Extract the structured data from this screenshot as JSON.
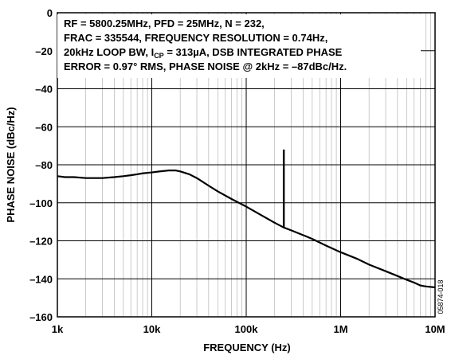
{
  "chart_data": {
    "type": "line",
    "xlabel": "FREQUENCY (Hz)",
    "ylabel": "PHASE NOISE (dBc/Hz)",
    "xscale": "log",
    "xlim": [
      1000,
      10000000
    ],
    "ylim": [
      -160,
      0
    ],
    "x_ticks": [
      {
        "value": 1000,
        "label": "1k"
      },
      {
        "value": 10000,
        "label": "10k"
      },
      {
        "value": 100000,
        "label": "100k"
      },
      {
        "value": 1000000,
        "label": "1M"
      },
      {
        "value": 10000000,
        "label": "10M"
      }
    ],
    "y_ticks": [
      {
        "value": 0,
        "label": "0"
      },
      {
        "value": -20,
        "label": "–20"
      },
      {
        "value": -40,
        "label": "–40"
      },
      {
        "value": -60,
        "label": "–60"
      },
      {
        "value": -80,
        "label": "–80"
      },
      {
        "value": -100,
        "label": "–100"
      },
      {
        "value": -120,
        "label": "–120"
      },
      {
        "value": -140,
        "label": "–140"
      },
      {
        "value": -160,
        "label": "–160"
      }
    ],
    "grid": true,
    "annotation": {
      "lines": [
        "RF = 5800.25MHz, PFD = 25MHz, N = 232,",
        "FRAC = 335544, FREQUENCY RESOLUTION = 0.74Hz,",
        "20kHz LOOP BW, I",
        "ERROR = 0.97° RMS, PHASE NOISE @ 2kHz = –87dBc/Hz."
      ],
      "line3_sub": "CP",
      "line3_rest": " = 313µA, DSB INTEGRATED PHASE"
    },
    "figure_id": "05874-018",
    "series": [
      {
        "points": [
          [
            1000,
            -86
          ],
          [
            1200,
            -86.5
          ],
          [
            1500,
            -86.5
          ],
          [
            2000,
            -87
          ],
          [
            2500,
            -87
          ],
          [
            3000,
            -87
          ],
          [
            4000,
            -86.5
          ],
          [
            5000,
            -86
          ],
          [
            6000,
            -85.5
          ],
          [
            7000,
            -85
          ],
          [
            8000,
            -84.5
          ],
          [
            10000,
            -84
          ],
          [
            12000,
            -83.5
          ],
          [
            15000,
            -83
          ],
          [
            18000,
            -83
          ],
          [
            20000,
            -83.5
          ],
          [
            25000,
            -85
          ],
          [
            30000,
            -87
          ],
          [
            40000,
            -91
          ],
          [
            50000,
            -94
          ],
          [
            70000,
            -98
          ],
          [
            100000,
            -102
          ],
          [
            150000,
            -107
          ],
          [
            200000,
            -110.5
          ],
          [
            250000,
            -113
          ],
          [
            300000,
            -114.5
          ],
          [
            400000,
            -117
          ],
          [
            500000,
            -119
          ],
          [
            700000,
            -122.5
          ],
          [
            1000000,
            -126
          ],
          [
            1500000,
            -129.5
          ],
          [
            2000000,
            -132.5
          ],
          [
            3000000,
            -136
          ],
          [
            4000000,
            -138.5
          ],
          [
            5000000,
            -140.5
          ],
          [
            6000000,
            -142
          ],
          [
            7000000,
            -143.5
          ],
          [
            8000000,
            -144
          ],
          [
            10000000,
            -144.5
          ]
        ]
      }
    ],
    "spur": {
      "x": 250000,
      "y_top": -72,
      "y_bottom": -113
    }
  }
}
